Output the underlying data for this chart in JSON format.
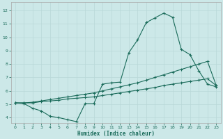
{
  "xlabel": "Humidex (Indice chaleur)",
  "bg_color": "#cce8e8",
  "grid_color": "#b8d8d8",
  "line_color": "#1a6b5a",
  "xlim": [
    -0.5,
    23.5
  ],
  "ylim": [
    3.6,
    12.6
  ],
  "xticks": [
    0,
    1,
    2,
    3,
    4,
    5,
    6,
    7,
    8,
    9,
    10,
    11,
    12,
    13,
    14,
    15,
    16,
    17,
    18,
    19,
    20,
    21,
    22,
    23
  ],
  "yticks": [
    4,
    5,
    6,
    7,
    8,
    9,
    10,
    11,
    12
  ],
  "line1_x": [
    0,
    1,
    2,
    3,
    4,
    5,
    6,
    7,
    8,
    9,
    10,
    11,
    12,
    13,
    14,
    15,
    16,
    17,
    18,
    19,
    20,
    21,
    22,
    23
  ],
  "line1_y": [
    5.1,
    5.05,
    4.7,
    4.5,
    4.1,
    4.0,
    3.85,
    3.7,
    5.05,
    5.05,
    6.5,
    6.6,
    6.65,
    8.85,
    9.8,
    11.1,
    11.45,
    11.8,
    11.5,
    9.1,
    8.7,
    7.5,
    6.5,
    6.3
  ],
  "line2_x": [
    0,
    1,
    2,
    3,
    4,
    5,
    6,
    7,
    8,
    9,
    10,
    11,
    12,
    13,
    14,
    15,
    16,
    17,
    18,
    19,
    20,
    21,
    22,
    23
  ],
  "line2_y": [
    5.1,
    5.1,
    5.1,
    5.2,
    5.25,
    5.3,
    5.4,
    5.45,
    5.5,
    5.55,
    5.65,
    5.75,
    5.85,
    5.95,
    6.05,
    6.15,
    6.25,
    6.4,
    6.5,
    6.6,
    6.7,
    6.8,
    6.9,
    6.4
  ],
  "line3_x": [
    0,
    1,
    2,
    3,
    4,
    5,
    6,
    7,
    8,
    9,
    10,
    11,
    12,
    13,
    14,
    15,
    16,
    17,
    18,
    19,
    20,
    21,
    22,
    23
  ],
  "line3_y": [
    5.1,
    5.1,
    5.15,
    5.25,
    5.35,
    5.45,
    5.55,
    5.65,
    5.75,
    5.85,
    6.0,
    6.15,
    6.3,
    6.45,
    6.6,
    6.8,
    7.0,
    7.2,
    7.4,
    7.6,
    7.8,
    8.0,
    8.2,
    6.4
  ]
}
